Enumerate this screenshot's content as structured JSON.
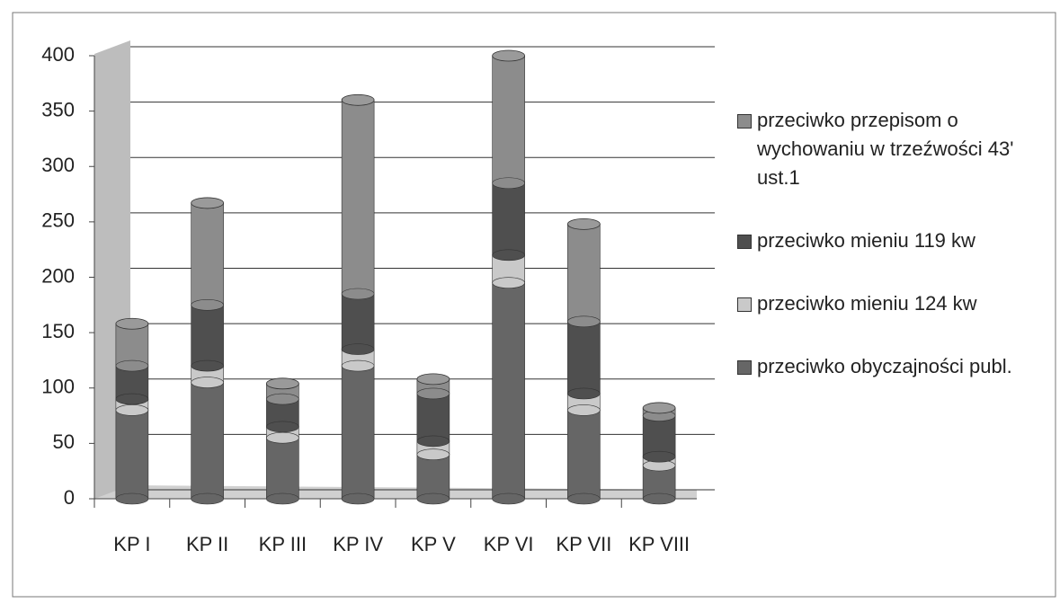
{
  "chart_data": {
    "type": "stacked-bar",
    "categories": [
      "KP I",
      "KP II",
      "KP III",
      "KP IV",
      "KP V",
      "KP VI",
      "KP VII",
      "KP VIII"
    ],
    "series": [
      {
        "name": "przeciwko obyczajności publ.",
        "color": "#666666",
        "values": [
          80,
          105,
          55,
          120,
          40,
          195,
          80,
          30
        ]
      },
      {
        "name": "przeciwko mieniu 124 kw",
        "color": "#c9c9c9",
        "values": [
          10,
          15,
          10,
          15,
          12,
          25,
          15,
          8
        ]
      },
      {
        "name": "przeciwko mieniu 119 kw",
        "color": "#4f4f4f",
        "values": [
          30,
          55,
          25,
          50,
          43,
          65,
          65,
          37
        ]
      },
      {
        "name": "przeciwko przepisom o wychowaniu w trzeźwości 43' ust.1",
        "color": "#8c8c8c",
        "values": [
          38,
          92,
          14,
          175,
          13,
          115,
          88,
          7
        ]
      }
    ],
    "ylim": [
      0,
      400
    ],
    "yticks": [
      0,
      50,
      100,
      150,
      200,
      250,
      300,
      350,
      400
    ],
    "grid": true,
    "legend": "right"
  }
}
